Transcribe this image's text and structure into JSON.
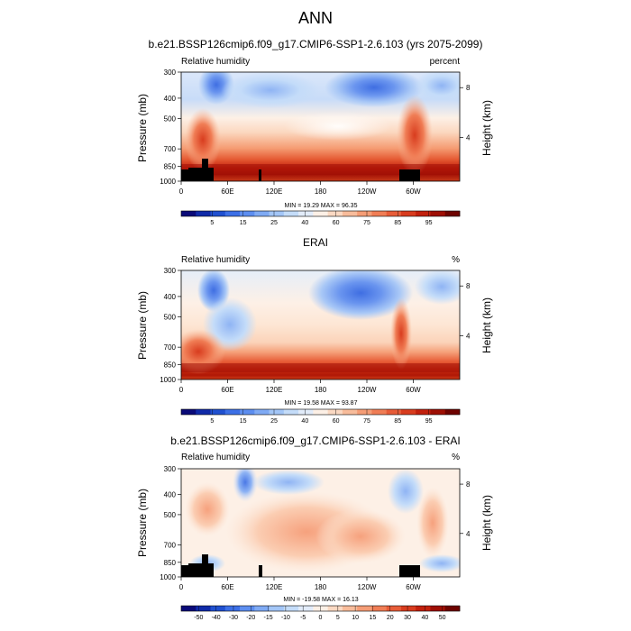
{
  "figure": {
    "title": "ANN"
  },
  "chart_data": [
    {
      "type": "heatmap",
      "title": "b.e21.BSSP126cmip6.f09_g17.CMIP6-SSP1-2.6.103 (yrs 2075-2099)",
      "left_label": "Relative humidity",
      "right_label": "percent",
      "xlabel": "",
      "ylabel": "Pressure (mb)",
      "ylabel_right": "Height (km)",
      "x_ticks": [
        "0",
        "60E",
        "120E",
        "180",
        "120W",
        "60W"
      ],
      "y_ticks": [
        "300",
        "400",
        "500",
        "700",
        "850",
        "1000"
      ],
      "y_right_ticks": [
        "8",
        "4"
      ],
      "stats": "MIN = 19.29  MAX = 96.35",
      "min": 19.29,
      "max": 96.35,
      "colorbar_labels": [
        "5",
        "15",
        "25",
        "40",
        "60",
        "75",
        "85",
        "95"
      ],
      "colorbar_colors": [
        "#0a0a78",
        "#102aa8",
        "#2050d0",
        "#3c6fe6",
        "#5d8ef0",
        "#7faaf4",
        "#a3c6f7",
        "#c4dcf9",
        "#e2ecfa",
        "#fdf0e6",
        "#fbd9c3",
        "#f8bc9b",
        "#f59d76",
        "#f07d55",
        "#e75c38",
        "#d83c1e",
        "#c2200d",
        "#9e0f04",
        "#6e0300"
      ],
      "regions": [
        {
          "name": "boundary-layer-max",
          "lon": [
            0,
            360
          ],
          "p": [
            800,
            1000
          ],
          "value": 90
        },
        {
          "name": "upper-dry-180W-60W",
          "lon": [
            215,
            270
          ],
          "p": [
            350,
            450
          ],
          "value": 20
        },
        {
          "name": "upper-dry-45E",
          "lon": [
            30,
            55
          ],
          "p": [
            340,
            480
          ],
          "value": 25
        },
        {
          "name": "subtropical-mid-dry",
          "lon": [
            120,
            220
          ],
          "p": [
            420,
            620
          ],
          "value": 45
        }
      ]
    },
    {
      "type": "heatmap",
      "title": "ERAI",
      "left_label": "Relative humidity",
      "right_label": "%",
      "xlabel": "",
      "ylabel": "Pressure (mb)",
      "ylabel_right": "Height (km)",
      "x_ticks": [
        "0",
        "60E",
        "120E",
        "180",
        "120W",
        "60W"
      ],
      "y_ticks": [
        "300",
        "400",
        "500",
        "700",
        "850",
        "1000"
      ],
      "y_right_ticks": [
        "8",
        "4"
      ],
      "stats": "MIN = 19.58  MAX = 93.87",
      "min": 19.58,
      "max": 93.87,
      "colorbar_labels": [
        "5",
        "15",
        "25",
        "40",
        "60",
        "75",
        "85",
        "95"
      ],
      "colorbar_colors": [
        "#0a0a78",
        "#102aa8",
        "#2050d0",
        "#3c6fe6",
        "#5d8ef0",
        "#7faaf4",
        "#a3c6f7",
        "#c4dcf9",
        "#e2ecfa",
        "#fdf0e6",
        "#fbd9c3",
        "#f8bc9b",
        "#f59d76",
        "#f07d55",
        "#e75c38",
        "#d83c1e",
        "#c2200d",
        "#9e0f04",
        "#6e0300"
      ],
      "regions": [
        {
          "name": "boundary-layer-max",
          "lon": [
            0,
            360
          ],
          "p": [
            820,
            1000
          ],
          "value": 88
        },
        {
          "name": "upper-dry-200-240",
          "lon": [
            190,
            260
          ],
          "p": [
            320,
            520
          ],
          "value": 20
        },
        {
          "name": "upper-dry-40E",
          "lon": [
            30,
            50
          ],
          "p": [
            350,
            470
          ],
          "value": 25
        }
      ]
    },
    {
      "type": "heatmap",
      "title": "b.e21.BSSP126cmip6.f09_g17.CMIP6-SSP1-2.6.103 - ERAI",
      "left_label": "Relative humidity",
      "right_label": "%",
      "xlabel": "",
      "ylabel": "Pressure (mb)",
      "ylabel_right": "Height (km)",
      "x_ticks": [
        "0",
        "60E",
        "120E",
        "180",
        "120W",
        "60W"
      ],
      "y_ticks": [
        "300",
        "400",
        "500",
        "700",
        "850",
        "1000"
      ],
      "y_right_ticks": [
        "8",
        "4"
      ],
      "stats": "MIN = -19.58  MAX = 16.13",
      "min": -19.58,
      "max": 16.13,
      "colorbar_labels": [
        "-50",
        "-40",
        "-30",
        "-20",
        "-15",
        "-10",
        "-5",
        "0",
        "5",
        "10",
        "15",
        "20",
        "30",
        "40",
        "50"
      ],
      "colorbar_colors": [
        "#0a0a78",
        "#102aa8",
        "#2050d0",
        "#3c6fe6",
        "#5d8ef0",
        "#7faaf4",
        "#a3c6f7",
        "#c4dcf9",
        "#e2ecfa",
        "#fdf0e6",
        "#fbd9c3",
        "#f8bc9b",
        "#f59d76",
        "#f07d55",
        "#e75c38",
        "#d83c1e",
        "#c2200d",
        "#9e0f04",
        "#6e0300"
      ],
      "regions": [
        {
          "name": "positive-180-120W",
          "lon": [
            150,
            260
          ],
          "p": [
            550,
            800
          ],
          "value": 10
        },
        {
          "name": "negative-80E",
          "lon": [
            70,
            90
          ],
          "p": [
            300,
            450
          ],
          "value": -15
        },
        {
          "name": "positive-60W",
          "lon": [
            270,
            300
          ],
          "p": [
            500,
            800
          ],
          "value": 8
        }
      ]
    }
  ]
}
